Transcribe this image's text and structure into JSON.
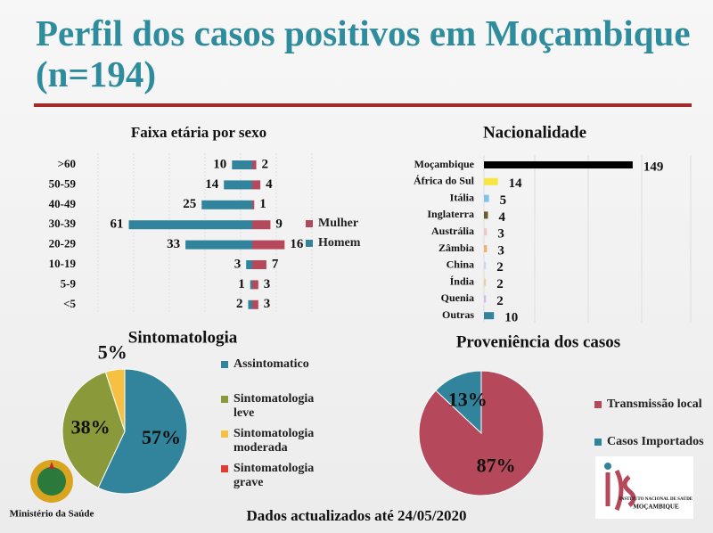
{
  "title": "Perfil dos casos positivos em Moçambique (n=194)",
  "chart_data": [
    {
      "type": "diverging-bar",
      "title": "Faixa etária por sexo",
      "categories": [
        ">60",
        "50-59",
        "40-49",
        "30-39",
        "20-29",
        "10-19",
        "5-9",
        "<5"
      ],
      "series": [
        {
          "name": "Mulher",
          "color": "#b5495b",
          "values": [
            2,
            4,
            1,
            9,
            16,
            7,
            3,
            3
          ]
        },
        {
          "name": "Homem",
          "color": "#31849b",
          "values": [
            10,
            14,
            25,
            61,
            33,
            3,
            1,
            2
          ]
        }
      ],
      "grid": true
    },
    {
      "type": "bar",
      "title": "Nacionalidade",
      "categories": [
        "Moçambique",
        "África do Sul",
        "Itália",
        "Inglaterra",
        "Austrália",
        "Zâmbia",
        "China",
        "Índia",
        "Quenia",
        "Outras"
      ],
      "values": [
        149,
        14,
        5,
        4,
        3,
        3,
        2,
        2,
        2,
        10
      ],
      "colors": [
        "#000000",
        "#f5e642",
        "#7fc4e8",
        "#6b5a2a",
        "#f3c6c6",
        "#f0b070",
        "#c8d8e8",
        "#e8d0a0",
        "#d0c0e0",
        "#31849b"
      ],
      "grid": true
    },
    {
      "type": "pie",
      "title": "Sintomatologia",
      "categories": [
        "Assintomatico",
        "Sintomatologia leve",
        "Sintomatologia moderada",
        "Sintomatologia grave"
      ],
      "values": [
        57,
        38,
        5,
        0
      ],
      "value_labels": [
        "57%",
        "38%",
        "5%",
        null
      ],
      "colors": [
        "#31849b",
        "#8a9a3a",
        "#f6c142",
        "#e03c31"
      ]
    },
    {
      "type": "pie",
      "title": "Proveniência dos casos",
      "categories": [
        "Transmissão local",
        "Casos Importados"
      ],
      "values": [
        87,
        13
      ],
      "value_labels": [
        "87%",
        "13%"
      ],
      "colors": [
        "#b5495b",
        "#31849b"
      ]
    }
  ],
  "footer": "Dados actualizados até 24/05/2020",
  "logo_left": "Ministério da Saúde",
  "logo_right": [
    "INSTITUTO NACIONAL DE SAÚDE",
    "MOÇAMBIQUE"
  ]
}
